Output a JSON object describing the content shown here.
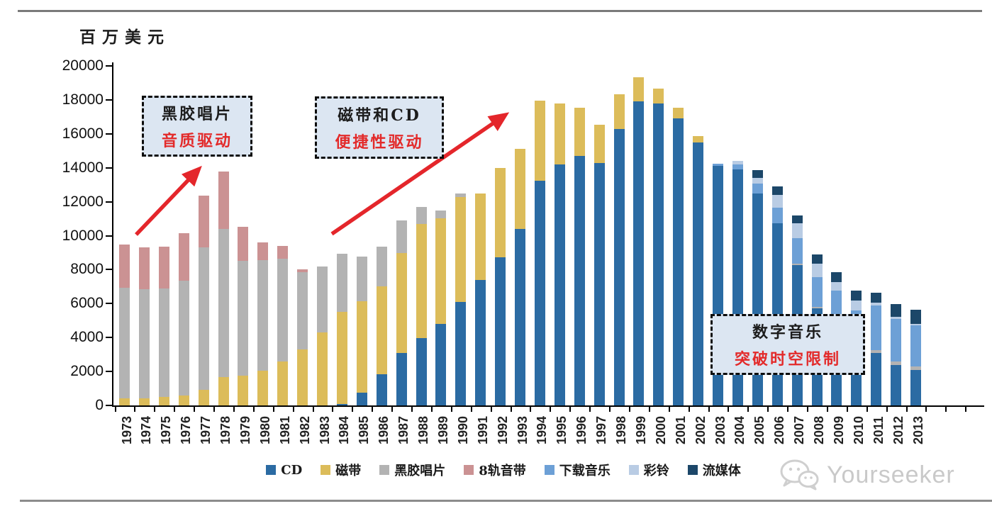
{
  "chart_data": {
    "type": "bar",
    "stacked": true,
    "title": "",
    "ylabel": "百万美元",
    "xlabel": "",
    "ylim": [
      0,
      20000
    ],
    "ytick_step": 2000,
    "grid": false,
    "legend_position": "bottom",
    "categories": [
      "1973",
      "1974",
      "1975",
      "1976",
      "1977",
      "1978",
      "1979",
      "1980",
      "1981",
      "1982",
      "1983",
      "1984",
      "1985",
      "1986",
      "1987",
      "1988",
      "1989",
      "1990",
      "1991",
      "1992",
      "1993",
      "1994",
      "1995",
      "1996",
      "1997",
      "1998",
      "1999",
      "2000",
      "2001",
      "2002",
      "2003",
      "2004",
      "2005",
      "2006",
      "2007",
      "2008",
      "2009",
      "2010",
      "2011",
      "2012",
      "2013"
    ],
    "series": [
      {
        "name": "CD",
        "color": "#2b6ba3",
        "values": [
          0,
          0,
          0,
          0,
          0,
          0,
          0,
          0,
          0,
          0,
          0,
          100,
          740,
          1830,
          3090,
          3950,
          4790,
          6080,
          7370,
          8740,
          10400,
          13250,
          14200,
          14700,
          14300,
          16300,
          17900,
          17800,
          16900,
          15500,
          14100,
          13900,
          12500,
          10750,
          8250,
          5700,
          5000,
          4000,
          3100,
          2400,
          2100
        ]
      },
      {
        "name": "磁带",
        "color": "#dcbc5a",
        "values": [
          430,
          430,
          500,
          570,
          920,
          1690,
          1760,
          2040,
          2600,
          3300,
          4280,
          5430,
          5390,
          5190,
          5890,
          6740,
          6250,
          6200,
          5130,
          5260,
          4700,
          4700,
          3600,
          2850,
          2250,
          2050,
          1450,
          850,
          630,
          380,
          0,
          0,
          0,
          0,
          0,
          0,
          0,
          0,
          0,
          0,
          0
        ]
      },
      {
        "name": "黑胶唱片",
        "color": "#b3b3b3",
        "values": [
          6490,
          6420,
          6380,
          6770,
          8380,
          8700,
          6770,
          6520,
          6030,
          4550,
          3910,
          3390,
          2640,
          2320,
          1930,
          1020,
          460,
          200,
          0,
          0,
          0,
          0,
          0,
          0,
          0,
          0,
          0,
          0,
          0,
          0,
          0,
          0,
          0,
          0,
          100,
          100,
          100,
          100,
          150,
          200,
          200
        ]
      },
      {
        "name": "8轨音带",
        "color": "#cb9293",
        "values": [
          2540,
          2470,
          2480,
          2790,
          3070,
          3400,
          2000,
          1050,
          780,
          180,
          0,
          0,
          0,
          0,
          0,
          0,
          0,
          0,
          0,
          0,
          0,
          0,
          0,
          0,
          0,
          0,
          0,
          0,
          0,
          0,
          0,
          0,
          0,
          0,
          0,
          0,
          0,
          0,
          0,
          0,
          0
        ]
      },
      {
        "name": "下载音乐",
        "color": "#6da0d6",
        "values": [
          0,
          0,
          0,
          0,
          0,
          0,
          0,
          0,
          0,
          0,
          0,
          0,
          0,
          0,
          0,
          0,
          0,
          0,
          0,
          0,
          0,
          0,
          0,
          0,
          0,
          0,
          0,
          0,
          0,
          0,
          150,
          300,
          560,
          900,
          1500,
          1750,
          1650,
          1500,
          2650,
          2500,
          2400
        ]
      },
      {
        "name": "彩铃",
        "color": "#b9cce4",
        "values": [
          0,
          0,
          0,
          0,
          0,
          0,
          0,
          0,
          0,
          0,
          0,
          0,
          0,
          0,
          0,
          0,
          0,
          0,
          0,
          0,
          0,
          0,
          0,
          0,
          0,
          0,
          0,
          0,
          0,
          0,
          0,
          200,
          350,
          770,
          870,
          800,
          500,
          600,
          150,
          100,
          100
        ]
      },
      {
        "name": "流媒体",
        "color": "#1c4769",
        "values": [
          0,
          0,
          0,
          0,
          0,
          0,
          0,
          0,
          0,
          0,
          0,
          0,
          0,
          0,
          0,
          0,
          0,
          0,
          0,
          0,
          0,
          0,
          0,
          0,
          0,
          0,
          0,
          0,
          0,
          0,
          0,
          0,
          450,
          480,
          480,
          550,
          600,
          550,
          600,
          780,
          850
        ]
      }
    ]
  },
  "annotations": [
    {
      "line1": "黑胶唱片",
      "line2": "音质驱动"
    },
    {
      "line1": "磁带和CD",
      "line2": "便捷性驱动"
    },
    {
      "line1": "数字音乐",
      "line2": "突破时空限制"
    }
  ],
  "arrow_color": "#e4262b",
  "watermark": {
    "text": "Yourseeker"
  }
}
